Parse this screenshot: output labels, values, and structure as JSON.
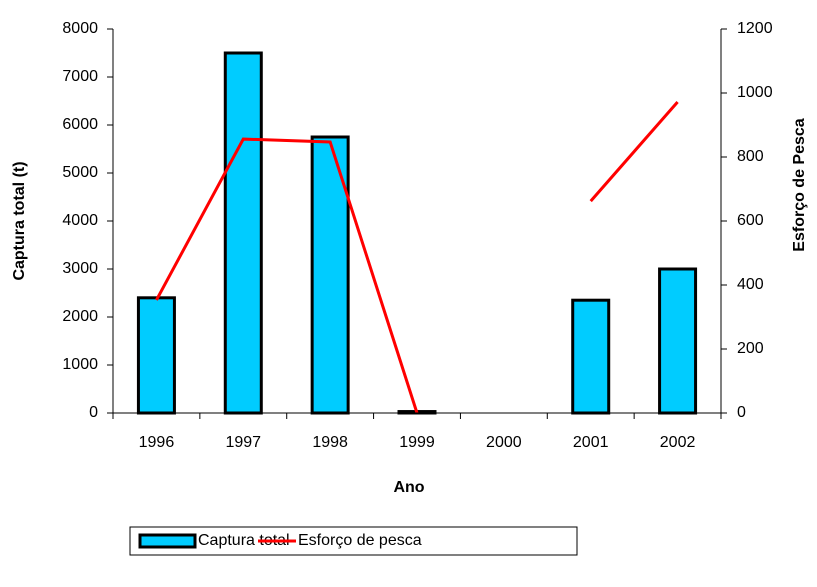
{
  "chart_data": {
    "type": "bar_line",
    "categories": [
      "1996",
      "1997",
      "1998",
      "1999",
      "2000",
      "2001",
      "2002"
    ],
    "series": [
      {
        "name": "Captura total",
        "type": "bar",
        "color": "#00ccff",
        "axis": "y",
        "values": [
          2400,
          7500,
          5750,
          30,
          null,
          2350,
          3000
        ]
      },
      {
        "name": "Esforço de pesca",
        "type": "line",
        "color": "#ff0000",
        "axis": "y2",
        "values": [
          353,
          856,
          847,
          0,
          null,
          662,
          972
        ]
      }
    ],
    "xlabel": "Ano",
    "ylabel": "Captura total (t)",
    "y2label": "Esforço de Pesca",
    "ylim": [
      0,
      8000
    ],
    "yticks": [
      0,
      1000,
      2000,
      3000,
      4000,
      5000,
      6000,
      7000,
      8000
    ],
    "y2lim": [
      0,
      1200
    ],
    "y2ticks": [
      0,
      200,
      400,
      600,
      800,
      1000,
      1200
    ],
    "legend": "bottom"
  }
}
